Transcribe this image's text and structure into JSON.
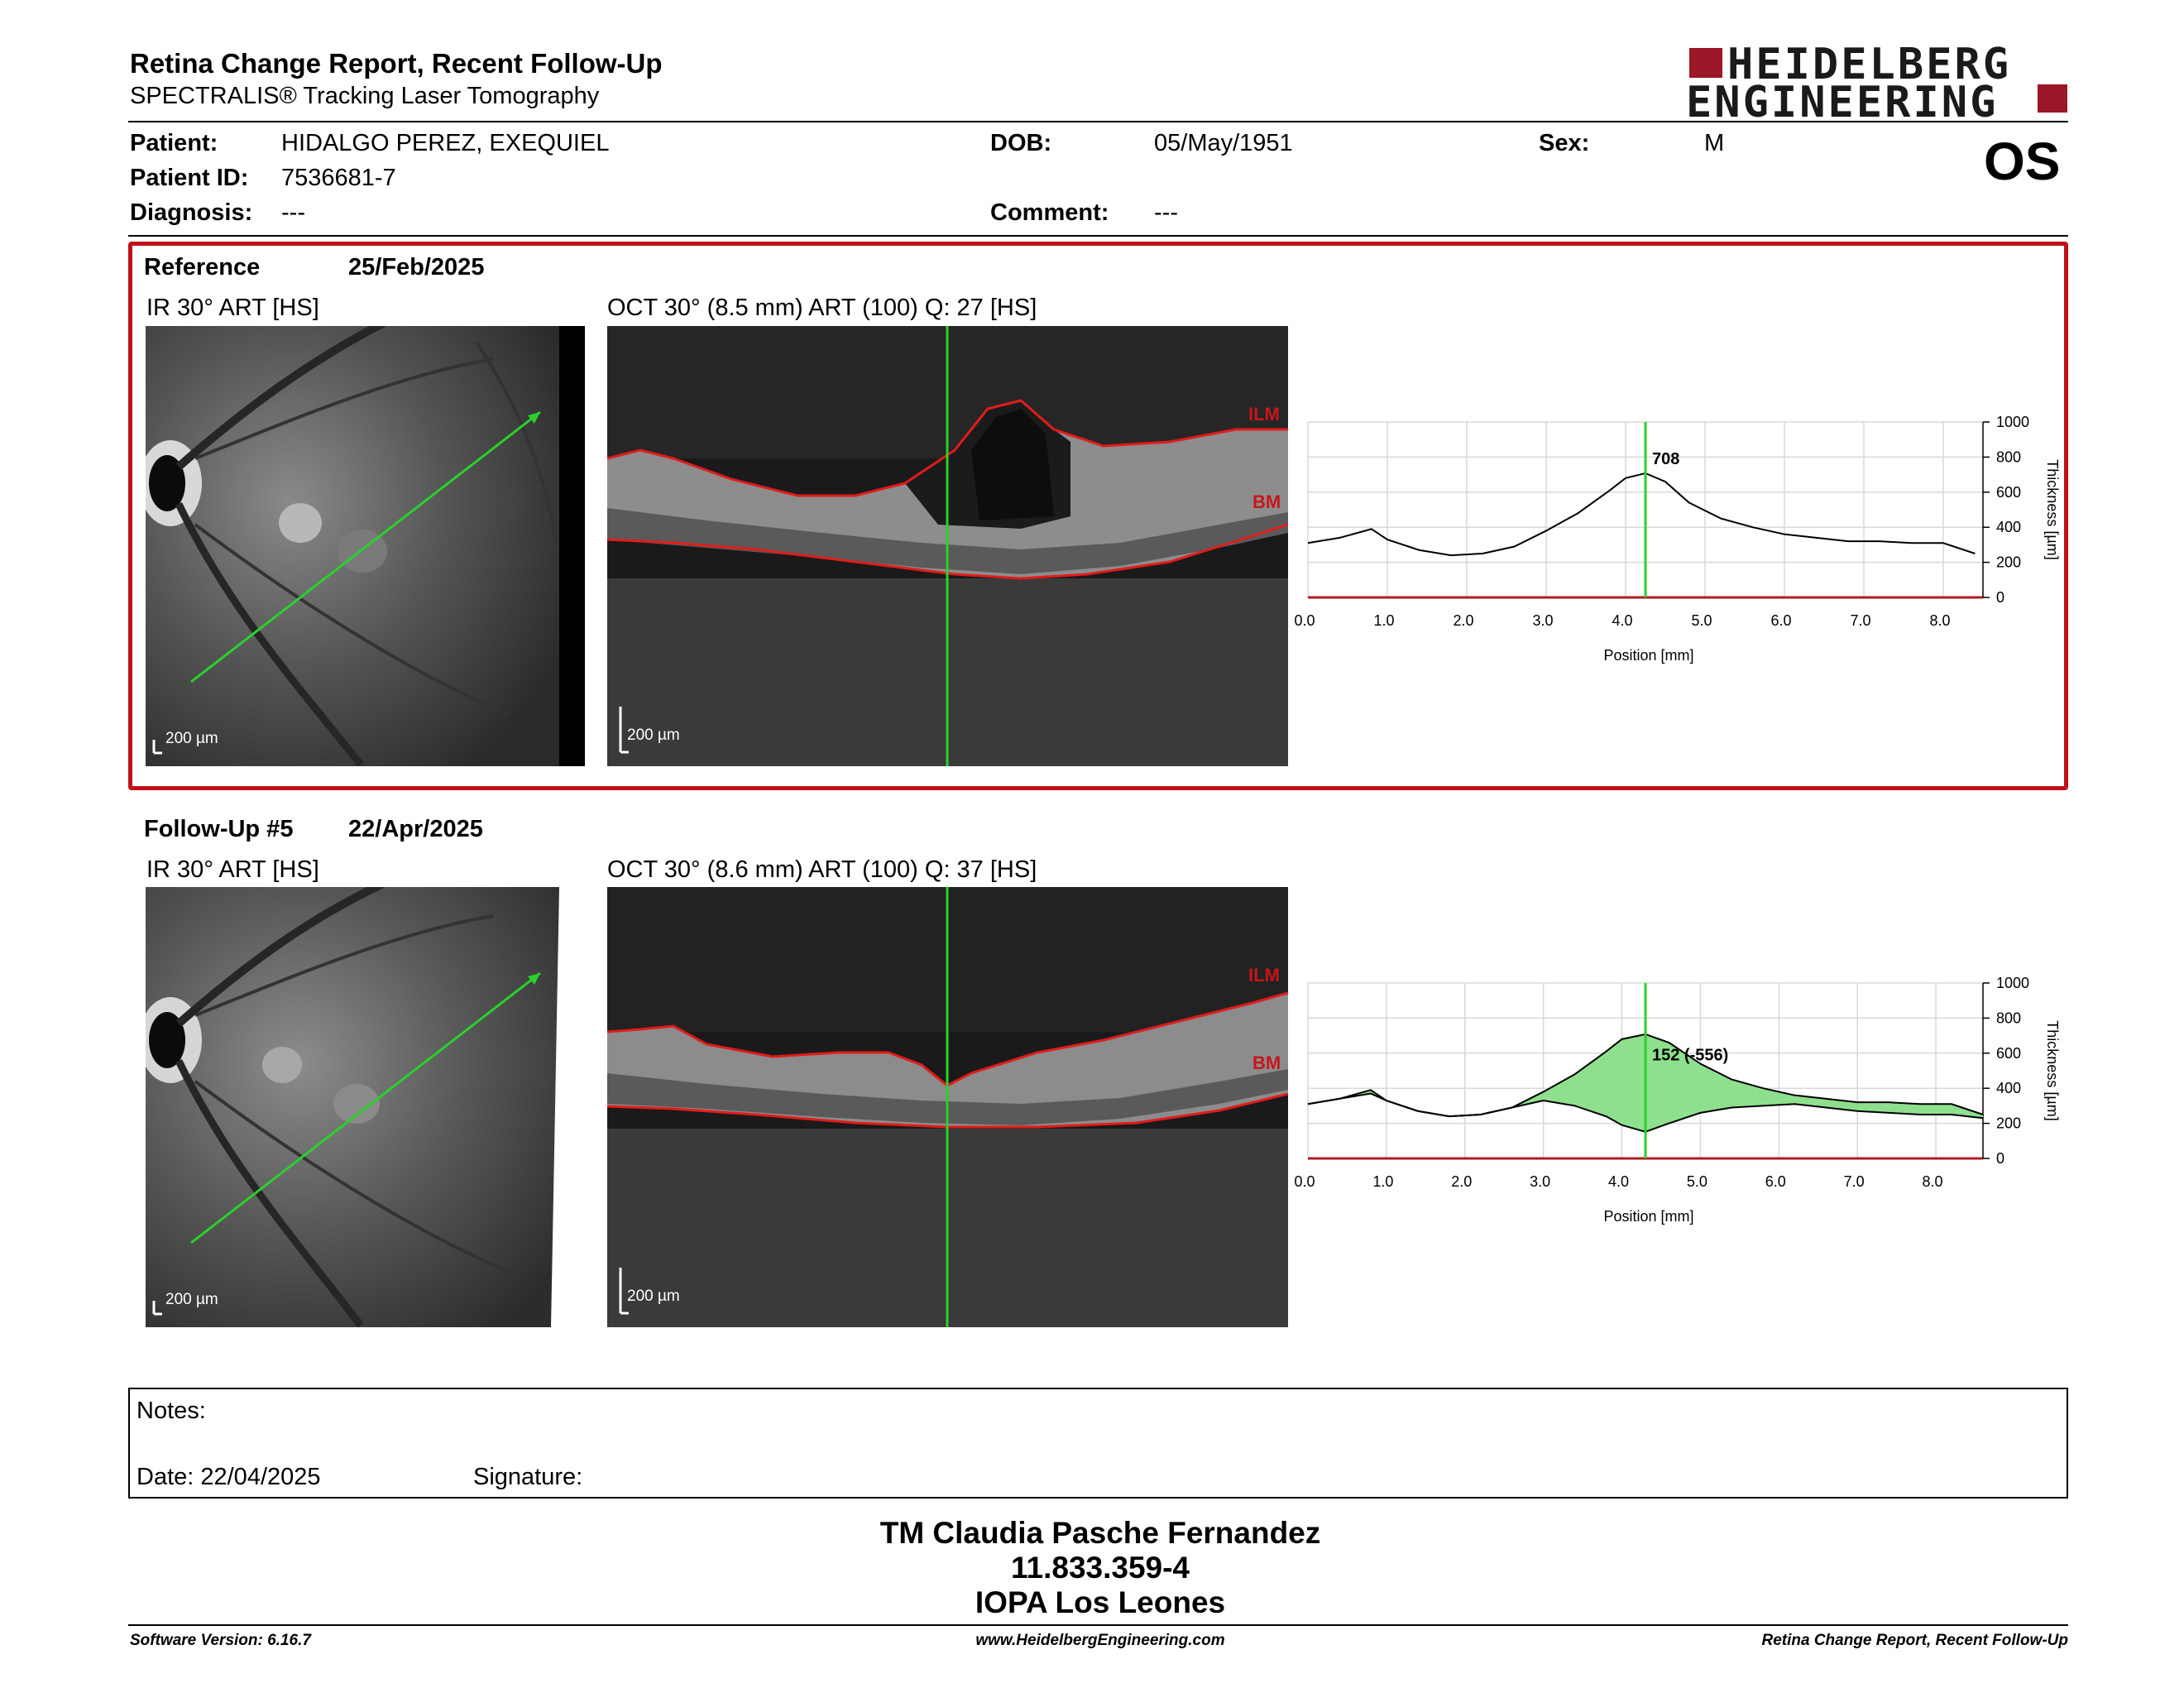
{
  "header": {
    "title": "Retina Change Report, Recent Follow-Up",
    "subtitle": "SPECTRALIS® Tracking Laser Tomography",
    "logo_line1": "HEIDELBERG",
    "logo_line2": "ENGINEERING",
    "eye": "OS"
  },
  "patient": {
    "patient_label": "Patient:",
    "patient_value": "HIDALGO PEREZ, EXEQUIEL",
    "id_label": "Patient ID:",
    "id_value": "7536681-7",
    "diagnosis_label": "Diagnosis:",
    "diagnosis_value": "---",
    "dob_label": "DOB:",
    "dob_value": "05/May/1951",
    "comment_label": "Comment:",
    "comment_value": "---",
    "sex_label": "Sex:",
    "sex_value": "M"
  },
  "reference": {
    "label": "Reference",
    "date": "25/Feb/2025",
    "ir_title": "IR 30° ART [HS]",
    "oct_title": "OCT 30° (8.5 mm) ART (100) Q: 27 [HS]",
    "scale": "200 µm",
    "ilm": "ILM",
    "bm": "BM"
  },
  "followup": {
    "label": "Follow-Up #5",
    "date": "22/Apr/2025",
    "ir_title": "IR 30° ART [HS]",
    "oct_title": "OCT 30° (8.6 mm) ART (100) Q: 37 [HS]",
    "scale": "200 µm",
    "ilm": "ILM",
    "bm": "BM"
  },
  "chart_data": [
    {
      "type": "line",
      "xlabel": "Position [mm]",
      "ylabel": "Thickness [µm]",
      "xlim": [
        0,
        8.5
      ],
      "ylim": [
        0,
        1000
      ],
      "xticks": [
        "0.0",
        "1.0",
        "2.0",
        "3.0",
        "4.0",
        "5.0",
        "6.0",
        "7.0",
        "8.0"
      ],
      "yticks": [
        "0",
        "200",
        "400",
        "600",
        "800",
        "1000"
      ],
      "marker_x": 4.25,
      "marker_label": "708",
      "series": [
        {
          "x": [
            0,
            0.4,
            0.8,
            1.0,
            1.4,
            1.8,
            2.2,
            2.6,
            3.0,
            3.4,
            3.8,
            4.0,
            4.25,
            4.5,
            4.8,
            5.2,
            5.6,
            6.0,
            6.4,
            6.8,
            7.2,
            7.6,
            8.0,
            8.4
          ],
          "y": [
            310,
            340,
            390,
            330,
            270,
            240,
            250,
            290,
            380,
            480,
            610,
            680,
            708,
            660,
            540,
            450,
            400,
            360,
            340,
            320,
            320,
            310,
            310,
            250
          ]
        }
      ]
    },
    {
      "type": "area",
      "xlabel": "Position [mm]",
      "ylabel": "Thickness [µm]",
      "xlim": [
        0,
        8.6
      ],
      "ylim": [
        0,
        1000
      ],
      "xticks": [
        "0.0",
        "1.0",
        "2.0",
        "3.0",
        "4.0",
        "5.0",
        "6.0",
        "7.0",
        "8.0"
      ],
      "yticks": [
        "0",
        "200",
        "400",
        "600",
        "800",
        "1000"
      ],
      "marker_x": 4.3,
      "marker_label": "152 (-556)",
      "series": [
        {
          "x": [
            0,
            0.4,
            0.8,
            1.0,
            1.4,
            1.8,
            2.2,
            2.6,
            3.0,
            3.4,
            3.8,
            4.0,
            4.3,
            4.6,
            5.0,
            5.4,
            5.8,
            6.2,
            6.6,
            7.0,
            7.4,
            7.8,
            8.2,
            8.6
          ],
          "y": [
            310,
            340,
            370,
            330,
            270,
            240,
            250,
            290,
            330,
            300,
            240,
            190,
            152,
            200,
            260,
            290,
            300,
            310,
            290,
            270,
            260,
            250,
            250,
            230
          ]
        },
        {
          "x": [
            0,
            0.4,
            0.8,
            1.0,
            1.4,
            1.8,
            2.2,
            2.6,
            3.0,
            3.4,
            3.8,
            4.0,
            4.3,
            4.6,
            5.0,
            5.4,
            5.8,
            6.2,
            6.6,
            7.0,
            7.4,
            7.8,
            8.2,
            8.6
          ],
          "y": [
            310,
            340,
            390,
            330,
            270,
            240,
            250,
            290,
            380,
            480,
            610,
            680,
            708,
            660,
            540,
            450,
            400,
            360,
            340,
            320,
            320,
            310,
            310,
            250
          ]
        }
      ]
    }
  ],
  "notes": {
    "notes_label": "Notes:",
    "date_label": "Date: 22/04/2025",
    "signature_label": "Signature:"
  },
  "signatory": {
    "name": "TM Claudia Pasche Fernandez",
    "id": "11.833.359-4",
    "org": "IOPA Los Leones"
  },
  "footer": {
    "software": "Software Version: 6.16.7",
    "website": "www.HeidelbergEngineering.com",
    "report": "Retina Change Report, Recent Follow-Up"
  }
}
